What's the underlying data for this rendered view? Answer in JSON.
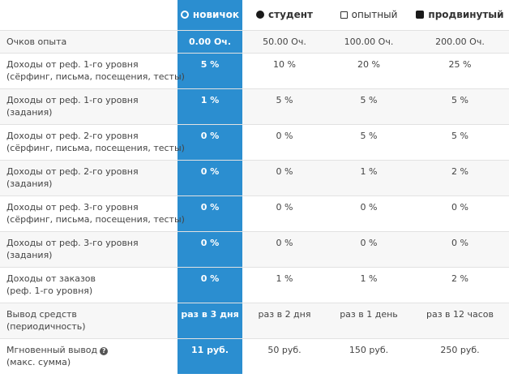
{
  "levels": [
    {
      "name": "новичок",
      "marker": "circle-outline-icon",
      "active": true
    },
    {
      "name": "студент",
      "marker": "circle-filled-icon",
      "active": false
    },
    {
      "name": "опытный",
      "marker": "square-outline-icon",
      "active": false
    },
    {
      "name": "продвинутый",
      "marker": "square-filled-icon",
      "active": false
    }
  ],
  "accent_color": "#2b8ed0",
  "rows": [
    {
      "label": [
        "Очков опыта"
      ],
      "values": [
        "0.00 Оч.",
        "50.00 Оч.",
        "100.00 Оч.",
        "200.00 Оч."
      ]
    },
    {
      "label": [
        "Доходы от реф. 1-го уровня",
        "(сёрфинг, письма, посещения, тесты)"
      ],
      "values": [
        "5 %",
        "10 %",
        "20 %",
        "25 %"
      ]
    },
    {
      "label": [
        "Доходы от реф. 1-го уровня",
        "(задания)"
      ],
      "values": [
        "1 %",
        "5 %",
        "5 %",
        "5 %"
      ]
    },
    {
      "label": [
        "Доходы от реф. 2-го уровня",
        "(сёрфинг, письма, посещения, тесты)"
      ],
      "values": [
        "0 %",
        "0 %",
        "5 %",
        "5 %"
      ]
    },
    {
      "label": [
        "Доходы от реф. 2-го уровня",
        "(задания)"
      ],
      "values": [
        "0 %",
        "0 %",
        "1 %",
        "2 %"
      ]
    },
    {
      "label": [
        "Доходы от реф. 3-го уровня",
        "(сёрфинг, письма, посещения, тесты)"
      ],
      "values": [
        "0 %",
        "0 %",
        "0 %",
        "0 %"
      ]
    },
    {
      "label": [
        "Доходы от реф. 3-го уровня",
        "(задания)"
      ],
      "values": [
        "0 %",
        "0 %",
        "0 %",
        "0 %"
      ]
    },
    {
      "label": [
        "Доходы от заказов",
        "(реф. 1-го уровня)"
      ],
      "values": [
        "0 %",
        "1 %",
        "1 %",
        "2 %"
      ]
    },
    {
      "label": [
        "Вывод средств",
        "(периодичность)"
      ],
      "values": [
        "раз в 3 дня",
        "раз в 2 дня",
        "раз в 1 день",
        "раз в 12 часов"
      ]
    },
    {
      "label": [
        "Мгновенный вывод",
        "(макс. сумма)"
      ],
      "help_icon": "question-circle-icon",
      "values": [
        "11 руб.",
        "50 руб.",
        "150 руб.",
        "250 руб."
      ]
    }
  ]
}
